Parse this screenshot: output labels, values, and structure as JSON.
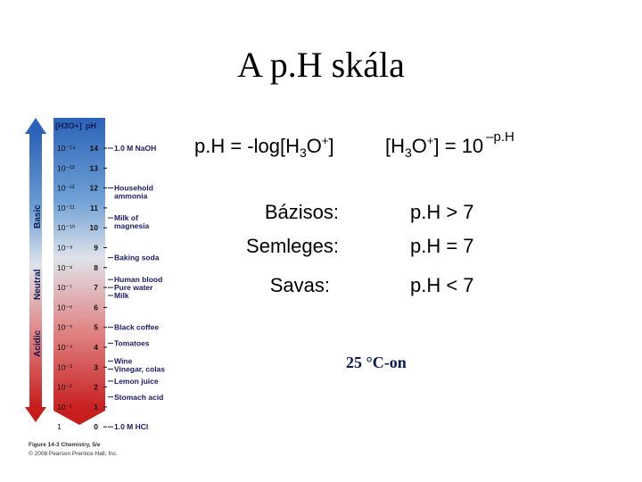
{
  "title": "A p.H skála",
  "formula_left": {
    "prefix": "p.H = -log[H",
    "sub": "3",
    "mid": "O",
    "sup": "+",
    "suffix": "]"
  },
  "formula_right": {
    "prefix": "[H",
    "sub": "3",
    "mid": "O",
    "sup": "+",
    "suffix": "] = 10",
    "exponent": "–p.H"
  },
  "rows": [
    {
      "label": "Bázisos:",
      "value": "p.H > 7"
    },
    {
      "label": "Semleges:",
      "value": "p.H = 7"
    },
    {
      "label": "Savas:",
      "value": "p.H < 7"
    }
  ],
  "temperature_note": "25 °C-on",
  "figure": {
    "header_conc": "[H3O+]",
    "header_ph": "pH",
    "side_labels": [
      "Basic",
      "Neutral",
      "Acidic"
    ],
    "concentrations": [
      "10⁻¹⁴",
      "10⁻¹³",
      "10⁻¹²",
      "10⁻¹¹",
      "10⁻¹⁰",
      "10⁻⁹",
      "10⁻⁸",
      "10⁻⁷",
      "10⁻⁶",
      "10⁻⁵",
      "10⁻⁴",
      "10⁻³",
      "10⁻²",
      "10⁻¹",
      "1"
    ],
    "ph_values": [
      "14",
      "13",
      "12",
      "11",
      "10",
      "9",
      "8",
      "7",
      "6",
      "5",
      "4",
      "3",
      "2",
      "1",
      "0"
    ],
    "examples": [
      {
        "ph": 14,
        "lines": [
          "1.0 M NaOH"
        ]
      },
      {
        "ph": 12,
        "lines": [
          "Household",
          "ammonia"
        ]
      },
      {
        "ph": 10.5,
        "lines": [
          "Milk of",
          "magnesia"
        ]
      },
      {
        "ph": 8.5,
        "lines": [
          "Baking soda"
        ]
      },
      {
        "ph": 7.4,
        "lines": [
          "Human blood"
        ]
      },
      {
        "ph": 7,
        "lines": [
          "Pure water"
        ]
      },
      {
        "ph": 6.6,
        "lines": [
          "Milk"
        ]
      },
      {
        "ph": 5,
        "lines": [
          "Black coffee"
        ]
      },
      {
        "ph": 4.2,
        "lines": [
          "Tomatoes"
        ]
      },
      {
        "ph": 3.3,
        "lines": [
          "Wine"
        ]
      },
      {
        "ph": 2.9,
        "lines": [
          "Vinegar, colas"
        ]
      },
      {
        "ph": 2.3,
        "lines": [
          "Lemon juice"
        ]
      },
      {
        "ph": 1.5,
        "lines": [
          "Stomach acid"
        ]
      },
      {
        "ph": 0,
        "lines": [
          "1.0 M HCl"
        ]
      }
    ],
    "caption_line1": "Figure 14-3 Chemistry, 5/e",
    "caption_line2": "© 2008 Pearson Prentice Hall, Inc.",
    "colors": {
      "basic_top": "#2c63b8",
      "basic_mid": "#6fa0d6",
      "neutral": "#dfe3ea",
      "acidic_mid": "#e08888",
      "acidic_bottom": "#c81e1e",
      "example_text": "#1a1a66"
    }
  }
}
